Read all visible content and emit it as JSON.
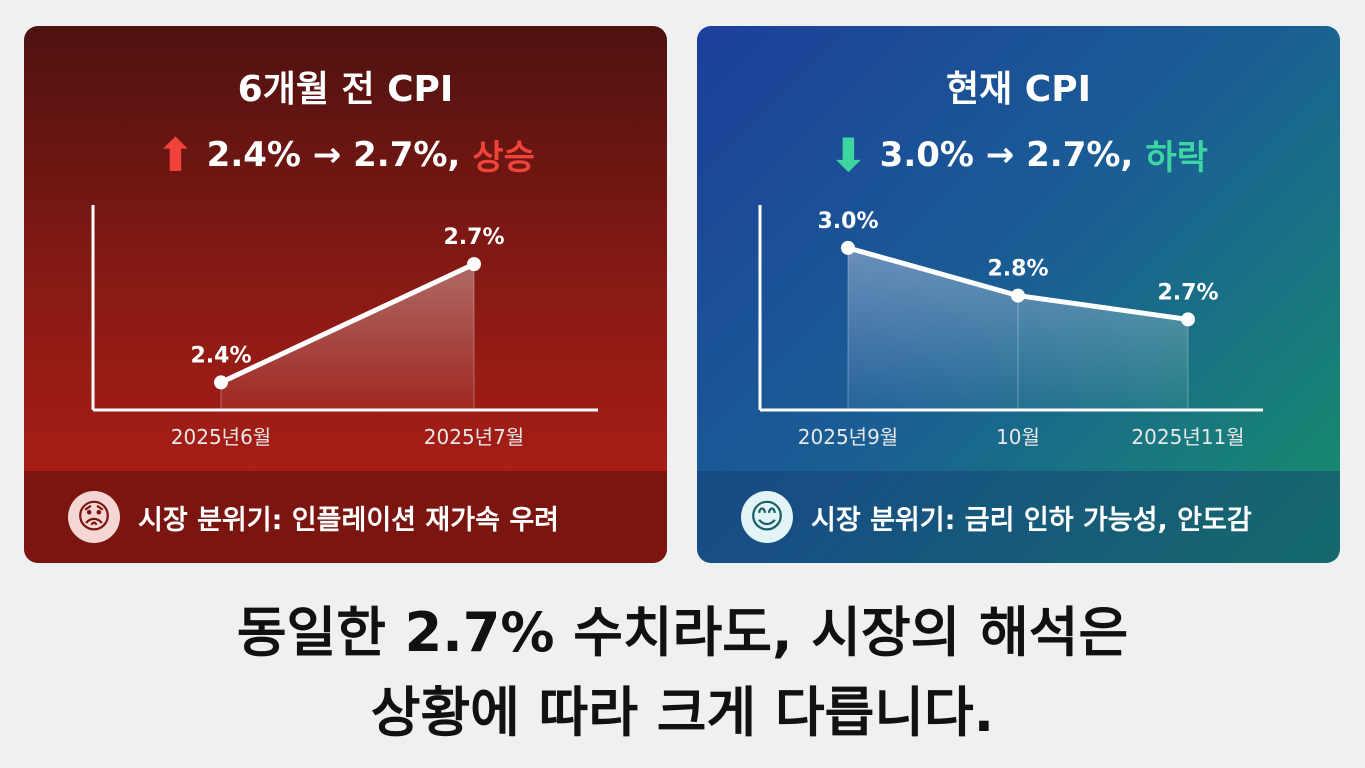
{
  "left": {
    "title": "6개월 전 CPI",
    "change_text": "2.4% → 2.7%,",
    "direction": "상승",
    "arrow_icon": "arrow-up",
    "accent": "#f0433a",
    "footer_icon": "anxious-face",
    "footer_text": "시장 분위기: 인플레이션 재가속 우려"
  },
  "right": {
    "title": "현재 CPI",
    "change_text": "3.0% → 2.7%,",
    "direction": "하락",
    "arrow_icon": "arrow-down",
    "accent": "#3ed6a0",
    "footer_icon": "smiling-face",
    "footer_text": "시장 분위기: 금리 인하 가능성, 안도감"
  },
  "caption": [
    "동일한 2.7% 수치라도, 시장의 해석은",
    "상황에 따라 크게 다릅니다."
  ],
  "chart_data": [
    {
      "type": "area",
      "categories": [
        "2025년6월",
        "2025년7월"
      ],
      "values": [
        2.4,
        2.7
      ],
      "data_labels": [
        "2.4%",
        "2.7%"
      ],
      "ylim": [
        2.33,
        2.85
      ],
      "grid": false
    },
    {
      "type": "area",
      "categories": [
        "2025년9월",
        "10월",
        "2025년11월"
      ],
      "values": [
        3.0,
        2.8,
        2.7
      ],
      "data_labels": [
        "3.0%",
        "2.8%",
        "2.7%"
      ],
      "ylim": [
        2.32,
        3.18
      ],
      "grid": false
    }
  ]
}
